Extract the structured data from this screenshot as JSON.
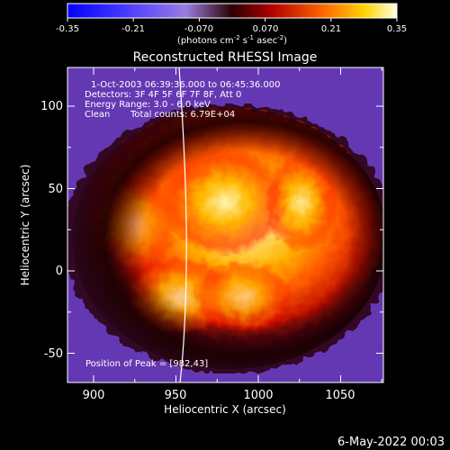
{
  "colorbar": {
    "ticks": [
      "-0.35",
      "-0.21",
      "-0.070",
      "0.070",
      "0.21",
      "0.35"
    ],
    "units_prefix": "(photons cm",
    "units_exp1": "-2",
    "units_mid": " s",
    "units_exp2": "-1",
    "units_mid2": " asec",
    "units_exp3": "-2",
    "units_suffix": ")"
  },
  "plot": {
    "title": "Reconstructed RHESSI Image",
    "xlabel": "Heliocentric X (arcsec)",
    "ylabel": "Heliocentric Y (arcsec)",
    "xticks": [
      "900",
      "950",
      "1000",
      "1050"
    ],
    "yticks": [
      "100",
      "50",
      "0",
      "-50"
    ],
    "info": {
      "time": "1-Oct-2003 06:39:36.000 to 06:45:36.000",
      "detectors": "Detectors: 3F 4F 5F 6F 7F 8F, Att 0",
      "energy": "Energy Range: 3.0 - 6.0 keV",
      "method": "Clean",
      "counts": "Total counts: 6.79E+04"
    },
    "peak": "Position of Peak = [982,43]"
  },
  "footer": {
    "date": "6-May-2022 00:03"
  },
  "colors": {
    "background": "#000000",
    "text": "#ffffff"
  }
}
